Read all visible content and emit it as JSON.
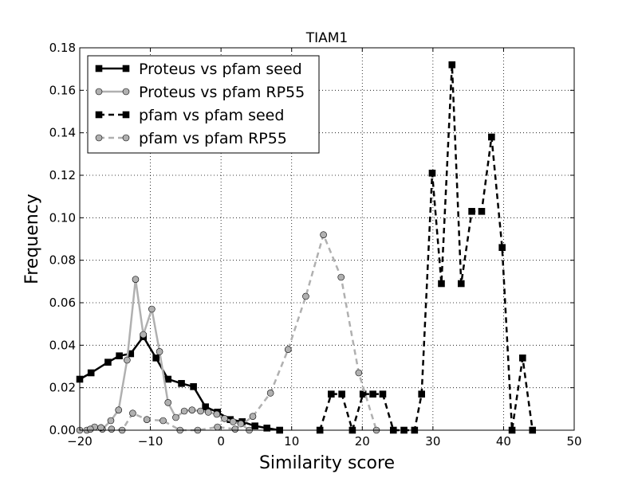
{
  "chart_data": {
    "type": "line",
    "title": "TIAM1",
    "xlabel": "Similarity score",
    "ylabel": "Frequency",
    "xlim": [
      -20,
      50
    ],
    "ylim": [
      0,
      0.18
    ],
    "xticks": [
      -20,
      -10,
      0,
      10,
      20,
      30,
      40,
      50
    ],
    "xtick_labels": [
      "−20",
      "−10",
      "0",
      "10",
      "20",
      "30",
      "40",
      "50"
    ],
    "yticks": [
      0,
      0.02,
      0.04,
      0.06,
      0.08,
      0.1,
      0.12,
      0.14,
      0.16,
      0.18
    ],
    "ytick_labels": [
      "0.00",
      "0.02",
      "0.04",
      "0.06",
      "0.08",
      "0.10",
      "0.12",
      "0.14",
      "0.16",
      "0.18"
    ],
    "grid": true,
    "legend_position": "top-left",
    "series": [
      {
        "name": "Proteus vs pfam seed",
        "color": "#000000",
        "linestyle": "solid",
        "marker": "square",
        "marker_fill": "#000000",
        "x": [
          -20,
          -18.4,
          -16.0,
          -14.4,
          -12.8,
          -11.0,
          -9.2,
          -7.5,
          -5.6,
          -3.9,
          -2.2,
          -0.5,
          1.3,
          3.0,
          4.8,
          6.5,
          8.3
        ],
        "y": [
          0.024,
          0.027,
          0.032,
          0.035,
          0.036,
          0.044,
          0.034,
          0.024,
          0.022,
          0.0205,
          0.011,
          0.0085,
          0.005,
          0.004,
          0.002,
          0.001,
          0.0
        ]
      },
      {
        "name": "Proteus vs pfam RP55",
        "color": "#b0b0b0",
        "linestyle": "solid",
        "marker": "circle",
        "marker_fill": "#b0b0b0",
        "x": [
          -19.0,
          -17.9,
          -16.8,
          -15.6,
          -14.5,
          -13.3,
          -12.1,
          -11.0,
          -9.8,
          -8.7,
          -7.5,
          -6.4,
          -5.2,
          -4.1,
          -2.9,
          -1.8,
          -0.6,
          0.5,
          1.7,
          2.8,
          4.0
        ],
        "y": [
          0.0,
          0.0015,
          0.0005,
          0.0045,
          0.0095,
          0.033,
          0.071,
          0.045,
          0.057,
          0.037,
          0.013,
          0.006,
          0.009,
          0.0095,
          0.009,
          0.0085,
          0.0075,
          0.0055,
          0.004,
          0.003,
          0.0
        ]
      },
      {
        "name": "pfam vs pfam seed",
        "color": "#000000",
        "linestyle": "dashed",
        "marker": "square",
        "marker_fill": "#000000",
        "x": [
          14.0,
          15.6,
          17.1,
          18.6,
          20.1,
          21.5,
          22.9,
          24.4,
          25.9,
          27.4,
          28.4,
          29.9,
          31.2,
          32.7,
          34.0,
          35.5,
          36.9,
          38.3,
          39.8,
          41.2,
          42.7,
          44.1
        ],
        "y": [
          0.0,
          0.017,
          0.017,
          0.0,
          0.017,
          0.017,
          0.017,
          0.0,
          0.0,
          0.0,
          0.017,
          0.121,
          0.069,
          0.172,
          0.069,
          0.103,
          0.103,
          0.138,
          0.086,
          0.0,
          0.034,
          0.0
        ]
      },
      {
        "name": "pfam vs pfam RP55",
        "color": "#b0b0b0",
        "linestyle": "dashed",
        "marker": "circle",
        "marker_fill": "#b0b0b0",
        "x": [
          -20.0,
          -18.5,
          -17.0,
          -15.5,
          -14.0,
          -12.5,
          -10.5,
          -8.2,
          -5.8,
          -3.3,
          -0.5,
          2.0,
          4.5,
          7.0,
          9.5,
          12.0,
          14.5,
          17.0,
          19.5,
          22.0
        ],
        "y": [
          0.0,
          0.0005,
          0.0012,
          0.0005,
          0.0,
          0.008,
          0.005,
          0.0045,
          0.0,
          0.0,
          0.0015,
          0.0005,
          0.0065,
          0.0175,
          0.038,
          0.063,
          0.092,
          0.072,
          0.027,
          0.0
        ]
      }
    ]
  }
}
